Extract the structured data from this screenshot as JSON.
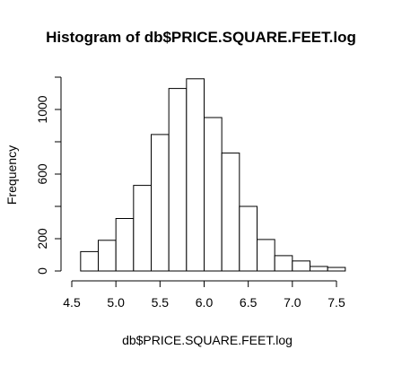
{
  "chart_data": {
    "type": "bar",
    "title": "Histogram of db$PRICE.SQUARE.FEET.log",
    "xlabel": "db$PRICE.SQUARE.FEET.log",
    "ylabel": "Frequency",
    "xlim": [
      4.5,
      7.6
    ],
    "ylim": [
      0,
      1200
    ],
    "x_ticks": [
      4.5,
      5.0,
      5.5,
      6.0,
      6.5,
      7.0,
      7.5
    ],
    "x_tick_labels": [
      "4.5",
      "5.0",
      "5.5",
      "6.0",
      "6.5",
      "7.0",
      "7.5"
    ],
    "y_ticks": [
      0,
      200,
      600,
      1000
    ],
    "y_tick_labels": [
      "0",
      "200",
      "600",
      "1000"
    ],
    "bins": [
      {
        "x0": 4.6,
        "x1": 4.8,
        "count": 120
      },
      {
        "x0": 4.8,
        "x1": 5.0,
        "count": 190
      },
      {
        "x0": 5.0,
        "x1": 5.2,
        "count": 325
      },
      {
        "x0": 5.2,
        "x1": 5.4,
        "count": 530
      },
      {
        "x0": 5.4,
        "x1": 5.6,
        "count": 845
      },
      {
        "x0": 5.6,
        "x1": 5.8,
        "count": 1130
      },
      {
        "x0": 5.8,
        "x1": 6.0,
        "count": 1190
      },
      {
        "x0": 6.0,
        "x1": 6.2,
        "count": 950
      },
      {
        "x0": 6.2,
        "x1": 6.4,
        "count": 730
      },
      {
        "x0": 6.4,
        "x1": 6.6,
        "count": 400
      },
      {
        "x0": 6.6,
        "x1": 6.8,
        "count": 195
      },
      {
        "x0": 6.8,
        "x1": 7.0,
        "count": 95
      },
      {
        "x0": 7.0,
        "x1": 7.2,
        "count": 62
      },
      {
        "x0": 7.2,
        "x1": 7.4,
        "count": 28
      },
      {
        "x0": 7.4,
        "x1": 7.6,
        "count": 22
      }
    ],
    "grid": false,
    "colors": {
      "bar_fill": "#ffffff",
      "bar_stroke": "#000000"
    }
  }
}
